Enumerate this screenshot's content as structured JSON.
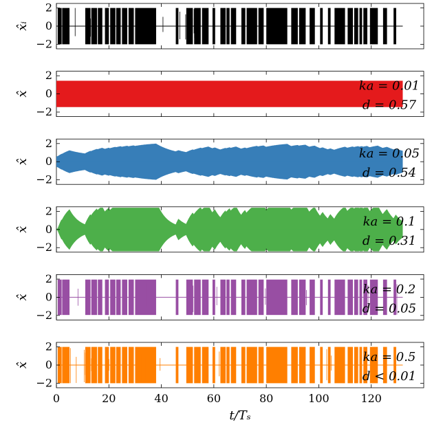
{
  "chart_data": {
    "type": "line",
    "xlabel": "t/Tₛ",
    "xlim": [
      0,
      140
    ],
    "x_ticks": [
      "0",
      "20",
      "40",
      "60",
      "80",
      "100",
      "120"
    ],
    "x_tick_values": [
      0,
      20,
      40,
      60,
      80,
      100,
      120
    ],
    "signal_end": 132,
    "y_ticks": [
      "2",
      "0",
      "−2"
    ],
    "y_tick_values": [
      2,
      0,
      -2
    ],
    "ylim": [
      -2.5,
      2.5
    ],
    "panels": [
      {
        "ylabel": "x̂ᵢ",
        "color": "#000000",
        "kind": "bursts",
        "amplitude": 2.0,
        "annotation": [
          "",
          ""
        ],
        "bursts": [
          [
            0.5,
            2.0
          ],
          [
            2.2,
            5.0
          ],
          [
            11.0,
            13.0
          ],
          [
            13.3,
            15.5
          ],
          [
            15.8,
            17.5
          ],
          [
            18.5,
            20.0
          ],
          [
            20.5,
            22.5
          ],
          [
            22.8,
            24.5
          ],
          [
            25.0,
            27.0
          ],
          [
            27.5,
            29.5
          ],
          [
            30.0,
            38.0
          ],
          [
            45.5,
            46.5
          ],
          [
            49.5,
            52.0
          ],
          [
            52.5,
            55.0
          ],
          [
            55.5,
            58.0
          ],
          [
            59.5,
            60.5
          ],
          [
            62.5,
            64.5
          ],
          [
            64.8,
            66.0
          ],
          [
            66.5,
            68.5
          ],
          [
            70.5,
            72.0
          ],
          [
            72.5,
            76.5
          ],
          [
            77.0,
            79.0
          ],
          [
            80.0,
            88.0
          ],
          [
            89.5,
            92.0
          ],
          [
            92.5,
            95.0
          ],
          [
            96.5,
            98.5
          ],
          [
            100.5,
            101.5
          ],
          [
            103.5,
            104.5
          ],
          [
            106.0,
            110.0
          ],
          [
            111.0,
            113.0
          ],
          [
            113.5,
            115.0
          ],
          [
            115.5,
            116.5
          ],
          [
            117.0,
            118.5
          ],
          [
            119.5,
            122.5
          ],
          [
            124.5,
            126.0
          ],
          [
            128.5,
            129.5
          ]
        ]
      },
      {
        "ylabel": "x̂",
        "color": "#e41a1c",
        "kind": "constant",
        "amplitude": 1.45,
        "annotation": [
          "ka = 0.01",
          "d = 0.57"
        ]
      },
      {
        "ylabel": "x̂",
        "color": "#377eb8",
        "kind": "envelope",
        "base": 0.6,
        "gain": 0.04,
        "tau": 8,
        "annotation": [
          "ka = 0.05",
          "d = 0.54"
        ]
      },
      {
        "ylabel": "x̂",
        "color": "#4daf4a",
        "kind": "envelope",
        "base": 0.1,
        "gain": 0.16,
        "tau": 4,
        "annotation": [
          "ka = 0.1",
          "d = 0.31"
        ]
      },
      {
        "ylabel": "x̂",
        "color": "#984ea3",
        "kind": "bursts",
        "amplitude": 1.95,
        "annotation": [
          "ka = 0.2",
          "d = 0.05"
        ]
      },
      {
        "ylabel": "x̂",
        "color": "#ff7f00",
        "kind": "bursts",
        "amplitude": 2.0,
        "annotation": [
          "ka = 0.5",
          "d < 0.01"
        ]
      }
    ]
  }
}
